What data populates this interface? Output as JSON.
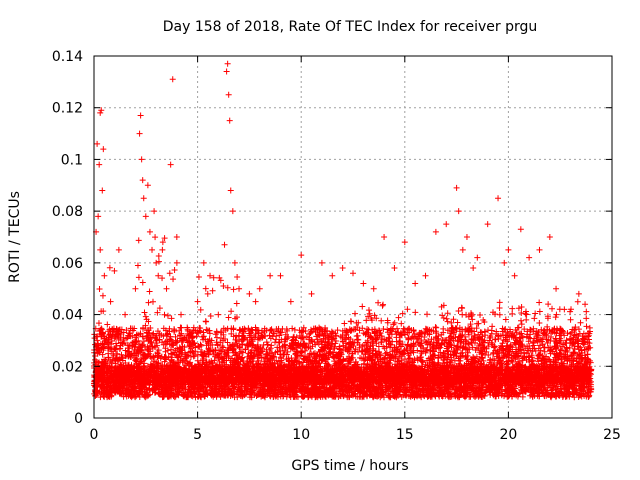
{
  "chart_data": {
    "type": "scatter",
    "title": "Day 158 of 2018, Rate Of TEC Index for receiver prgu",
    "xlabel": "GPS time / hours",
    "ylabel": "ROTI / TECUs",
    "xlim": [
      0,
      25
    ],
    "ylim": [
      0,
      0.14
    ],
    "xticks": [
      0,
      5,
      10,
      15,
      20,
      25
    ],
    "yticks": [
      0,
      0.02,
      0.04,
      0.06,
      0.08,
      0.1,
      0.12,
      0.14
    ],
    "xtick_labels": [
      "0",
      "5",
      "10",
      "15",
      "20",
      "25"
    ],
    "ytick_labels": [
      "0",
      "0.02",
      "0.04",
      "0.06",
      "0.08",
      "0.1",
      "0.12",
      "0.14"
    ],
    "grid": true,
    "marker": "+",
    "color": "#ff0000",
    "series": [
      {
        "name": "ROTI",
        "points": [
          [
            0.1,
            0.072
          ],
          [
            0.15,
            0.106
          ],
          [
            0.2,
            0.078
          ],
          [
            0.25,
            0.098
          ],
          [
            0.3,
            0.118
          ],
          [
            0.35,
            0.119
          ],
          [
            0.4,
            0.088
          ],
          [
            0.45,
            0.104
          ],
          [
            0.3,
            0.065
          ],
          [
            0.5,
            0.055
          ],
          [
            0.8,
            0.045
          ],
          [
            1.2,
            0.065
          ],
          [
            1.5,
            0.04
          ],
          [
            2.0,
            0.05
          ],
          [
            2.2,
            0.11
          ],
          [
            2.25,
            0.117
          ],
          [
            2.3,
            0.1
          ],
          [
            2.35,
            0.092
          ],
          [
            2.4,
            0.085
          ],
          [
            2.5,
            0.078
          ],
          [
            2.6,
            0.09
          ],
          [
            2.7,
            0.072
          ],
          [
            2.8,
            0.065
          ],
          [
            2.9,
            0.08
          ],
          [
            3.0,
            0.06
          ],
          [
            3.1,
            0.055
          ],
          [
            3.3,
            0.065
          ],
          [
            3.5,
            0.05
          ],
          [
            3.7,
            0.098
          ],
          [
            3.8,
            0.131
          ],
          [
            4.0,
            0.06
          ],
          [
            4.2,
            0.04
          ],
          [
            4.5,
            0.035
          ],
          [
            5.0,
            0.045
          ],
          [
            5.3,
            0.06
          ],
          [
            5.6,
            0.055
          ],
          [
            6.0,
            0.04
          ],
          [
            6.3,
            0.067
          ],
          [
            6.4,
            0.134
          ],
          [
            6.45,
            0.137
          ],
          [
            6.5,
            0.125
          ],
          [
            6.55,
            0.115
          ],
          [
            6.6,
            0.088
          ],
          [
            6.7,
            0.08
          ],
          [
            6.8,
            0.06
          ],
          [
            7.0,
            0.05
          ],
          [
            7.5,
            0.048
          ],
          [
            7.8,
            0.045
          ],
          [
            8.0,
            0.05
          ],
          [
            8.5,
            0.055
          ],
          [
            9.0,
            0.055
          ],
          [
            9.5,
            0.045
          ],
          [
            10.0,
            0.063
          ],
          [
            10.5,
            0.048
          ],
          [
            11.0,
            0.06
          ],
          [
            11.5,
            0.055
          ],
          [
            12.0,
            0.058
          ],
          [
            12.5,
            0.056
          ],
          [
            13.0,
            0.052
          ],
          [
            13.5,
            0.05
          ],
          [
            14.0,
            0.07
          ],
          [
            14.5,
            0.058
          ],
          [
            15.0,
            0.068
          ],
          [
            15.5,
            0.052
          ],
          [
            16.0,
            0.055
          ],
          [
            16.5,
            0.072
          ],
          [
            17.0,
            0.075
          ],
          [
            17.5,
            0.089
          ],
          [
            17.6,
            0.08
          ],
          [
            17.8,
            0.065
          ],
          [
            18.0,
            0.07
          ],
          [
            18.3,
            0.058
          ],
          [
            18.5,
            0.062
          ],
          [
            19.0,
            0.075
          ],
          [
            19.5,
            0.085
          ],
          [
            19.8,
            0.06
          ],
          [
            20.0,
            0.065
          ],
          [
            20.3,
            0.055
          ],
          [
            20.6,
            0.073
          ],
          [
            21.0,
            0.062
          ],
          [
            21.5,
            0.065
          ],
          [
            22.0,
            0.07
          ],
          [
            22.3,
            0.05
          ],
          [
            22.7,
            0.042
          ],
          [
            23.0,
            0.038
          ],
          [
            23.4,
            0.048
          ],
          [
            23.7,
            0.044
          ]
        ],
        "baseline": {
          "description": "dense band of measurements spanning the full day",
          "x_range": [
            0,
            24
          ],
          "typical_range": [
            0.008,
            0.035
          ],
          "dense_clusters": [
            {
              "x_range": [
                0,
                1
              ],
              "y_max": 0.06
            },
            {
              "x_range": [
                2,
                4
              ],
              "y_max": 0.07
            },
            {
              "x_range": [
                5,
                7
              ],
              "y_max": 0.055
            },
            {
              "x_range": [
                12,
                24
              ],
              "y_max": 0.045
            }
          ]
        }
      }
    ]
  }
}
